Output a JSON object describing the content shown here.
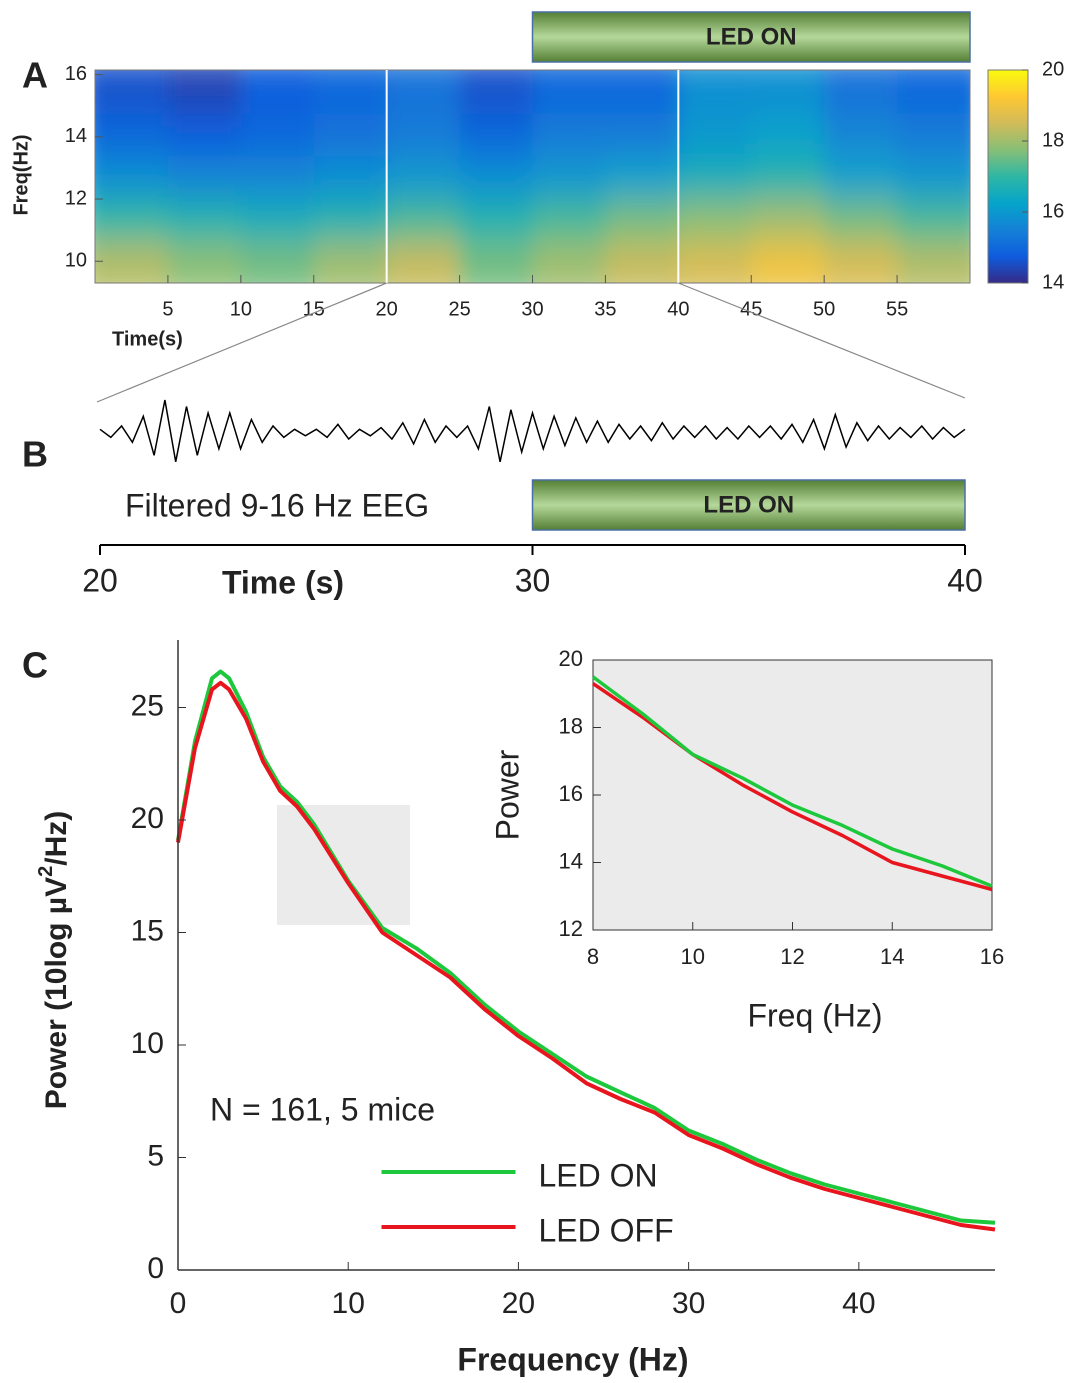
{
  "chart_data": [
    {
      "type": "heatmap",
      "panel": "A",
      "xlabel": "Time(s)",
      "ylabel": "Freq(Hz)",
      "x_bins": [
        0,
        5,
        10,
        15,
        20,
        25,
        30,
        35,
        40,
        45,
        50,
        55,
        60
      ],
      "y_bins": [
        9.3,
        10.67,
        12.04,
        13.41,
        14.78,
        16.15
      ],
      "values": [
        [
          18.2,
          17.8,
          17.6,
          18.0,
          18.4,
          17.6,
          18.0,
          18.4,
          18.6,
          19.0,
          18.6,
          18.2
        ],
        [
          17.0,
          16.8,
          16.6,
          16.8,
          17.2,
          16.8,
          17.2,
          17.6,
          17.8,
          18.0,
          17.6,
          17.2
        ],
        [
          15.8,
          15.6,
          15.6,
          15.8,
          16.0,
          15.8,
          16.0,
          16.2,
          16.6,
          16.8,
          16.2,
          16.0
        ],
        [
          15.0,
          14.8,
          15.0,
          15.2,
          15.4,
          15.0,
          15.4,
          15.4,
          16.0,
          16.2,
          15.6,
          15.4
        ],
        [
          14.6,
          14.4,
          14.8,
          15.0,
          15.2,
          14.6,
          15.0,
          15.0,
          15.8,
          15.8,
          15.2,
          15.0
        ]
      ],
      "xlim": [
        0,
        60
      ],
      "xticks": [
        5,
        10,
        15,
        20,
        25,
        30,
        35,
        40,
        45,
        50,
        55
      ],
      "ylim": [
        9.3,
        16.15
      ],
      "yticks": [
        10,
        12,
        14,
        16
      ],
      "clim": [
        14,
        20
      ],
      "cticks": [
        14,
        16,
        18,
        20
      ],
      "span": [
        30,
        60
      ],
      "span_label": "LED ON"
    },
    {
      "type": "line",
      "panel": "B",
      "title": "Filtered 9-16 Hz EEG",
      "xlabel": "Time (s)",
      "color": "#000000",
      "x": [
        20,
        20.25,
        20.5,
        20.75,
        21,
        21.25,
        21.5,
        21.75,
        22,
        22.25,
        22.5,
        22.75,
        23,
        23.25,
        23.5,
        23.75,
        24,
        24.25,
        24.5,
        24.75,
        25,
        25.25,
        25.5,
        25.75,
        26,
        26.25,
        26.5,
        26.75,
        27,
        27.25,
        27.5,
        27.75,
        28,
        28.25,
        28.5,
        28.75,
        29,
        29.25,
        29.5,
        29.75,
        30,
        30.25,
        30.5,
        30.75,
        31,
        31.25,
        31.5,
        31.75,
        32,
        32.25,
        32.5,
        32.75,
        33,
        33.25,
        33.5,
        33.75,
        34,
        34.25,
        34.5,
        34.75,
        35,
        35.25,
        35.5,
        35.75,
        36,
        36.25,
        36.5,
        36.75,
        37,
        37.25,
        37.5,
        37.75,
        38,
        38.25,
        38.5,
        38.75,
        39,
        39.25,
        39.5,
        39.75,
        40
      ],
      "values": [
        0.1,
        -0.15,
        0.2,
        -0.3,
        0.5,
        -0.7,
        1.0,
        -0.9,
        0.8,
        -0.7,
        0.6,
        -0.5,
        0.6,
        -0.5,
        0.4,
        -0.3,
        0.2,
        -0.15,
        0.1,
        -0.1,
        0.1,
        -0.15,
        0.25,
        -0.2,
        0.1,
        -0.1,
        0.15,
        -0.2,
        0.3,
        -0.35,
        0.4,
        -0.3,
        0.2,
        -0.15,
        0.2,
        -0.5,
        0.8,
        -0.9,
        0.7,
        -0.6,
        0.6,
        -0.5,
        0.5,
        -0.4,
        0.45,
        -0.3,
        0.35,
        -0.3,
        0.25,
        -0.2,
        0.2,
        -0.25,
        0.3,
        -0.2,
        0.2,
        -0.15,
        0.2,
        -0.2,
        0.15,
        -0.2,
        0.2,
        -0.15,
        0.2,
        -0.2,
        0.25,
        -0.3,
        0.4,
        -0.5,
        0.55,
        -0.45,
        0.3,
        -0.25,
        0.2,
        -0.2,
        0.15,
        -0.15,
        0.2,
        -0.2,
        0.15,
        -0.15,
        0.1
      ],
      "xlim": [
        20,
        40
      ],
      "xticks": [
        20,
        30,
        40
      ],
      "span": [
        30,
        40
      ],
      "span_label": "LED ON"
    },
    {
      "type": "line",
      "panel": "C",
      "xlabel": "Frequency (Hz)",
      "ylabel": [
        "Power (10log µV",
        "2",
        "/Hz)"
      ],
      "annotation": "N = 161, 5 mice",
      "legend": "lower center",
      "x": [
        0,
        1,
        2,
        2.5,
        3,
        4,
        5,
        6,
        7,
        8,
        10,
        12,
        14,
        16,
        18,
        20,
        22,
        24,
        26,
        28,
        30,
        32,
        34,
        36,
        38,
        40,
        42,
        44,
        46,
        48
      ],
      "series": [
        {
          "name": "LED ON",
          "color": "#1ec83c",
          "values": [
            19.1,
            23.5,
            26.3,
            26.6,
            26.3,
            24.8,
            22.8,
            21.5,
            20.8,
            19.8,
            17.3,
            15.2,
            14.3,
            13.2,
            11.8,
            10.6,
            9.6,
            8.6,
            7.9,
            7.2,
            6.2,
            5.6,
            4.9,
            4.3,
            3.8,
            3.4,
            3.0,
            2.6,
            2.2,
            2.1
          ]
        },
        {
          "name": "LED OFF",
          "color": "#e8141e",
          "values": [
            19.0,
            23.2,
            25.8,
            26.1,
            25.8,
            24.5,
            22.6,
            21.3,
            20.6,
            19.6,
            17.2,
            15.0,
            14.0,
            13.0,
            11.6,
            10.4,
            9.4,
            8.3,
            7.6,
            7.0,
            6.0,
            5.4,
            4.7,
            4.1,
            3.6,
            3.2,
            2.8,
            2.4,
            2.0,
            1.8
          ]
        }
      ],
      "xlim": [
        0,
        48
      ],
      "xticks": [
        0,
        10,
        20,
        30,
        40
      ],
      "ylim": [
        0,
        28
      ],
      "yticks": [
        0,
        5,
        10,
        15,
        20,
        25
      ]
    },
    {
      "type": "line",
      "xlabel": "Freq (Hz)",
      "ylabel": "Power",
      "x": [
        8,
        9,
        10,
        11,
        12,
        13,
        14,
        15,
        16
      ],
      "series": [
        {
          "color": "#e8141e",
          "values": [
            19.3,
            18.3,
            17.2,
            16.3,
            15.5,
            14.8,
            14.0,
            13.6,
            13.2
          ]
        },
        {
          "color": "#1ec83c",
          "values": [
            19.5,
            18.4,
            17.2,
            16.5,
            15.7,
            15.1,
            14.4,
            13.9,
            13.3
          ]
        }
      ],
      "xlim": [
        8,
        16
      ],
      "xticks": [
        8,
        10,
        12,
        14,
        16
      ],
      "ylim": [
        12,
        20
      ],
      "yticks": [
        12,
        14,
        16,
        18,
        20
      ]
    }
  ]
}
